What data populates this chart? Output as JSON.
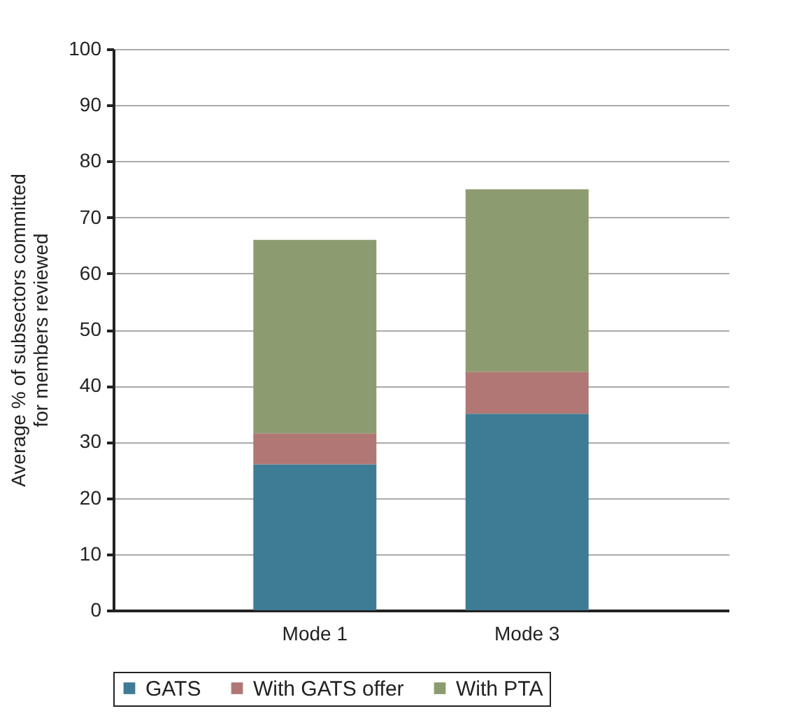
{
  "chart_data": {
    "type": "bar",
    "stacked": true,
    "ylabel": "Average % of subsectors committed\nfor members reviewed",
    "categories": [
      "Mode 1",
      "Mode 3"
    ],
    "series": [
      {
        "name": "GATS",
        "color": "#3e7b95",
        "values": [
          26,
          35
        ]
      },
      {
        "name": "With GATS offer",
        "color": "#b07775",
        "values": [
          5.5,
          7.5
        ]
      },
      {
        "name": "With PTA",
        "color": "#8d9c70",
        "values": [
          34.5,
          32.5
        ]
      }
    ],
    "ylim": [
      0,
      100
    ],
    "yticks": [
      0,
      10,
      20,
      30,
      40,
      50,
      60,
      70,
      80,
      90,
      100
    ],
    "grid": "y",
    "legend": "bottom"
  }
}
